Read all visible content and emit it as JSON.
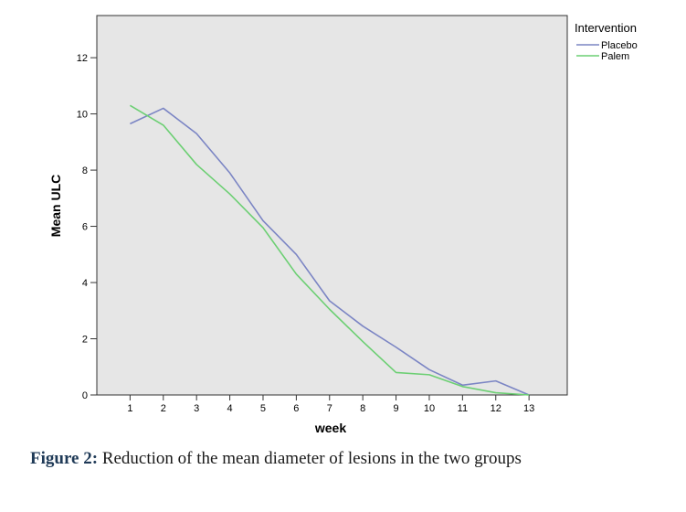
{
  "chart_data": {
    "type": "line",
    "x": [
      1,
      2,
      3,
      4,
      5,
      6,
      7,
      8,
      9,
      10,
      11,
      12,
      13
    ],
    "series": [
      {
        "name": "Placebo",
        "color": "#7b85c4",
        "values": [
          9.65,
          10.2,
          9.3,
          7.9,
          6.2,
          5.0,
          3.35,
          2.45,
          1.7,
          0.9,
          0.35,
          0.5,
          0.0
        ]
      },
      {
        "name": "Palem",
        "color": "#6ccf73",
        "values": [
          10.3,
          9.6,
          8.2,
          7.15,
          5.95,
          4.3,
          3.05,
          1.9,
          0.8,
          0.72,
          0.3,
          0.08,
          0.0
        ]
      }
    ],
    "xlabel": "week",
    "ylabel": "Mean ULC",
    "yticks": [
      0,
      2,
      4,
      6,
      8,
      10,
      12
    ],
    "ylim": [
      0,
      13.5
    ],
    "xlim": [
      0,
      14.15
    ],
    "legend_title": "Intervention",
    "legend_position": "top-right",
    "grid": false,
    "plot_background": "#e6e6e6"
  },
  "caption": {
    "label": "Figure 2:",
    "text": " Reduction of the mean diameter of lesions in the two groups"
  }
}
